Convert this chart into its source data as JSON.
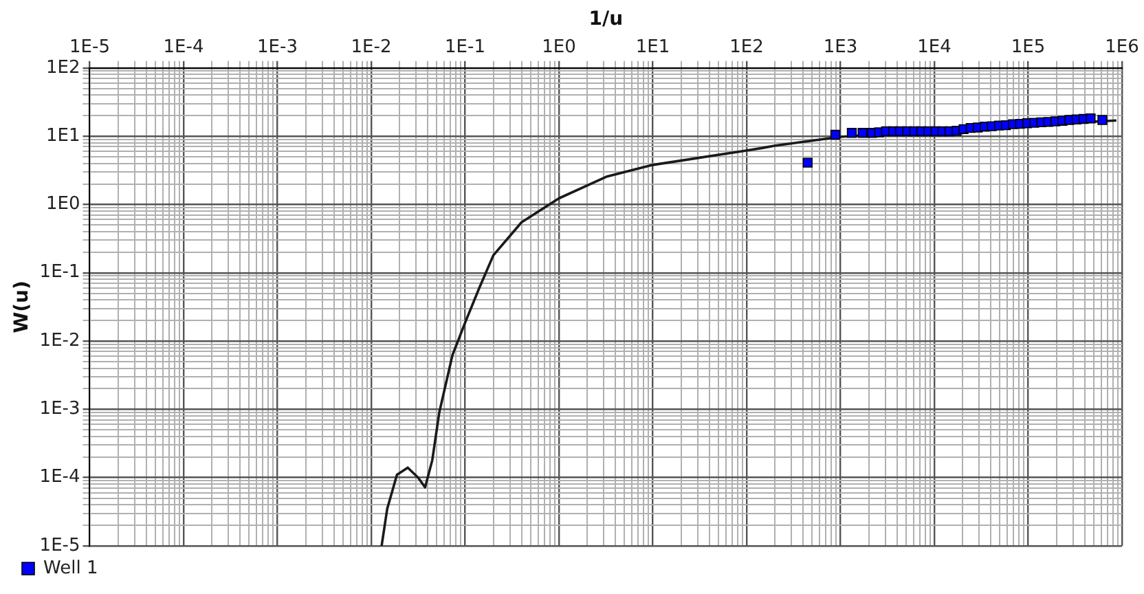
{
  "chart_data": {
    "type": "line",
    "xlabel": "1/u",
    "ylabel": "W(u)",
    "log": "xy",
    "grid": true,
    "legend": "bottom left",
    "xlim": [
      1e-05,
      1000000
    ],
    "ylim": [
      1e-05,
      100
    ],
    "xticks": [
      {
        "value": 1e-05,
        "label": "1E-5"
      },
      {
        "value": 0.0001,
        "label": "1E-4"
      },
      {
        "value": 0.001,
        "label": "1E-3"
      },
      {
        "value": 0.01,
        "label": "1E-2"
      },
      {
        "value": 0.1,
        "label": "1E-1"
      },
      {
        "value": 1,
        "label": "1E0"
      },
      {
        "value": 10,
        "label": "1E1"
      },
      {
        "value": 100,
        "label": "1E2"
      },
      {
        "value": 1000,
        "label": "1E3"
      },
      {
        "value": 10000,
        "label": "1E4"
      },
      {
        "value": 100000,
        "label": "1E5"
      },
      {
        "value": 1000000,
        "label": "1E6"
      }
    ],
    "yticks": [
      {
        "value": 1e-05,
        "label": "1E-5"
      },
      {
        "value": 0.0001,
        "label": "1E-4"
      },
      {
        "value": 0.001,
        "label": "1E-3"
      },
      {
        "value": 0.01,
        "label": "1E-2"
      },
      {
        "value": 0.1,
        "label": "1E-1"
      },
      {
        "value": 1,
        "label": "1E0"
      },
      {
        "value": 10,
        "label": "1E1"
      },
      {
        "value": 100,
        "label": "1E2"
      }
    ],
    "series": [
      {
        "color": "#1a1a1a",
        "marker": "none",
        "line_style": "solid",
        "x": [
          0.0129,
          0.0148,
          0.0188,
          0.0245,
          0.0316,
          0.0375,
          0.0447,
          0.053,
          0.0733,
          0.1,
          0.141,
          0.2,
          0.4,
          1,
          3.2,
          10,
          102,
          145,
          203,
          1000,
          10000,
          100000,
          871000
        ],
        "values": [
          1e-05,
          3.5e-05,
          0.00011,
          0.00014,
          0.0001,
          7.2e-05,
          0.00018,
          0.00089,
          0.0062,
          0.0186,
          0.059,
          0.18,
          0.55,
          1.23,
          2.55,
          3.8,
          6.2,
          6.7,
          7.3,
          9.8,
          12,
          14.6,
          17
        ]
      },
      {
        "type": "scatter",
        "name": "Well 1",
        "color": "#0000ff",
        "marker": "square",
        "x": [
          447,
          881,
          1320,
          1720,
          2170,
          2580,
          3060,
          3640,
          4320,
          5140,
          6110,
          7260,
          8630,
          10300,
          12200,
          14500,
          17300,
          20500,
          24400,
          29000,
          34500,
          41000,
          48800,
          58000,
          69000,
          82000,
          97500,
          116000,
          138000,
          164000,
          195000,
          232000,
          275000,
          328000,
          390000,
          463000,
          618000
        ],
        "values": [
          4.1,
          10.5,
          11.2,
          11.2,
          11.2,
          11.4,
          11.8,
          11.8,
          11.8,
          11.8,
          11.8,
          11.8,
          11.8,
          11.8,
          11.8,
          11.8,
          12,
          12.7,
          13.2,
          13.4,
          13.8,
          14,
          14.3,
          14.5,
          15,
          15.2,
          15.5,
          15.7,
          16,
          16.2,
          16.5,
          16.8,
          17.3,
          17.6,
          17.9,
          18.2,
          17.3
        ]
      }
    ]
  }
}
